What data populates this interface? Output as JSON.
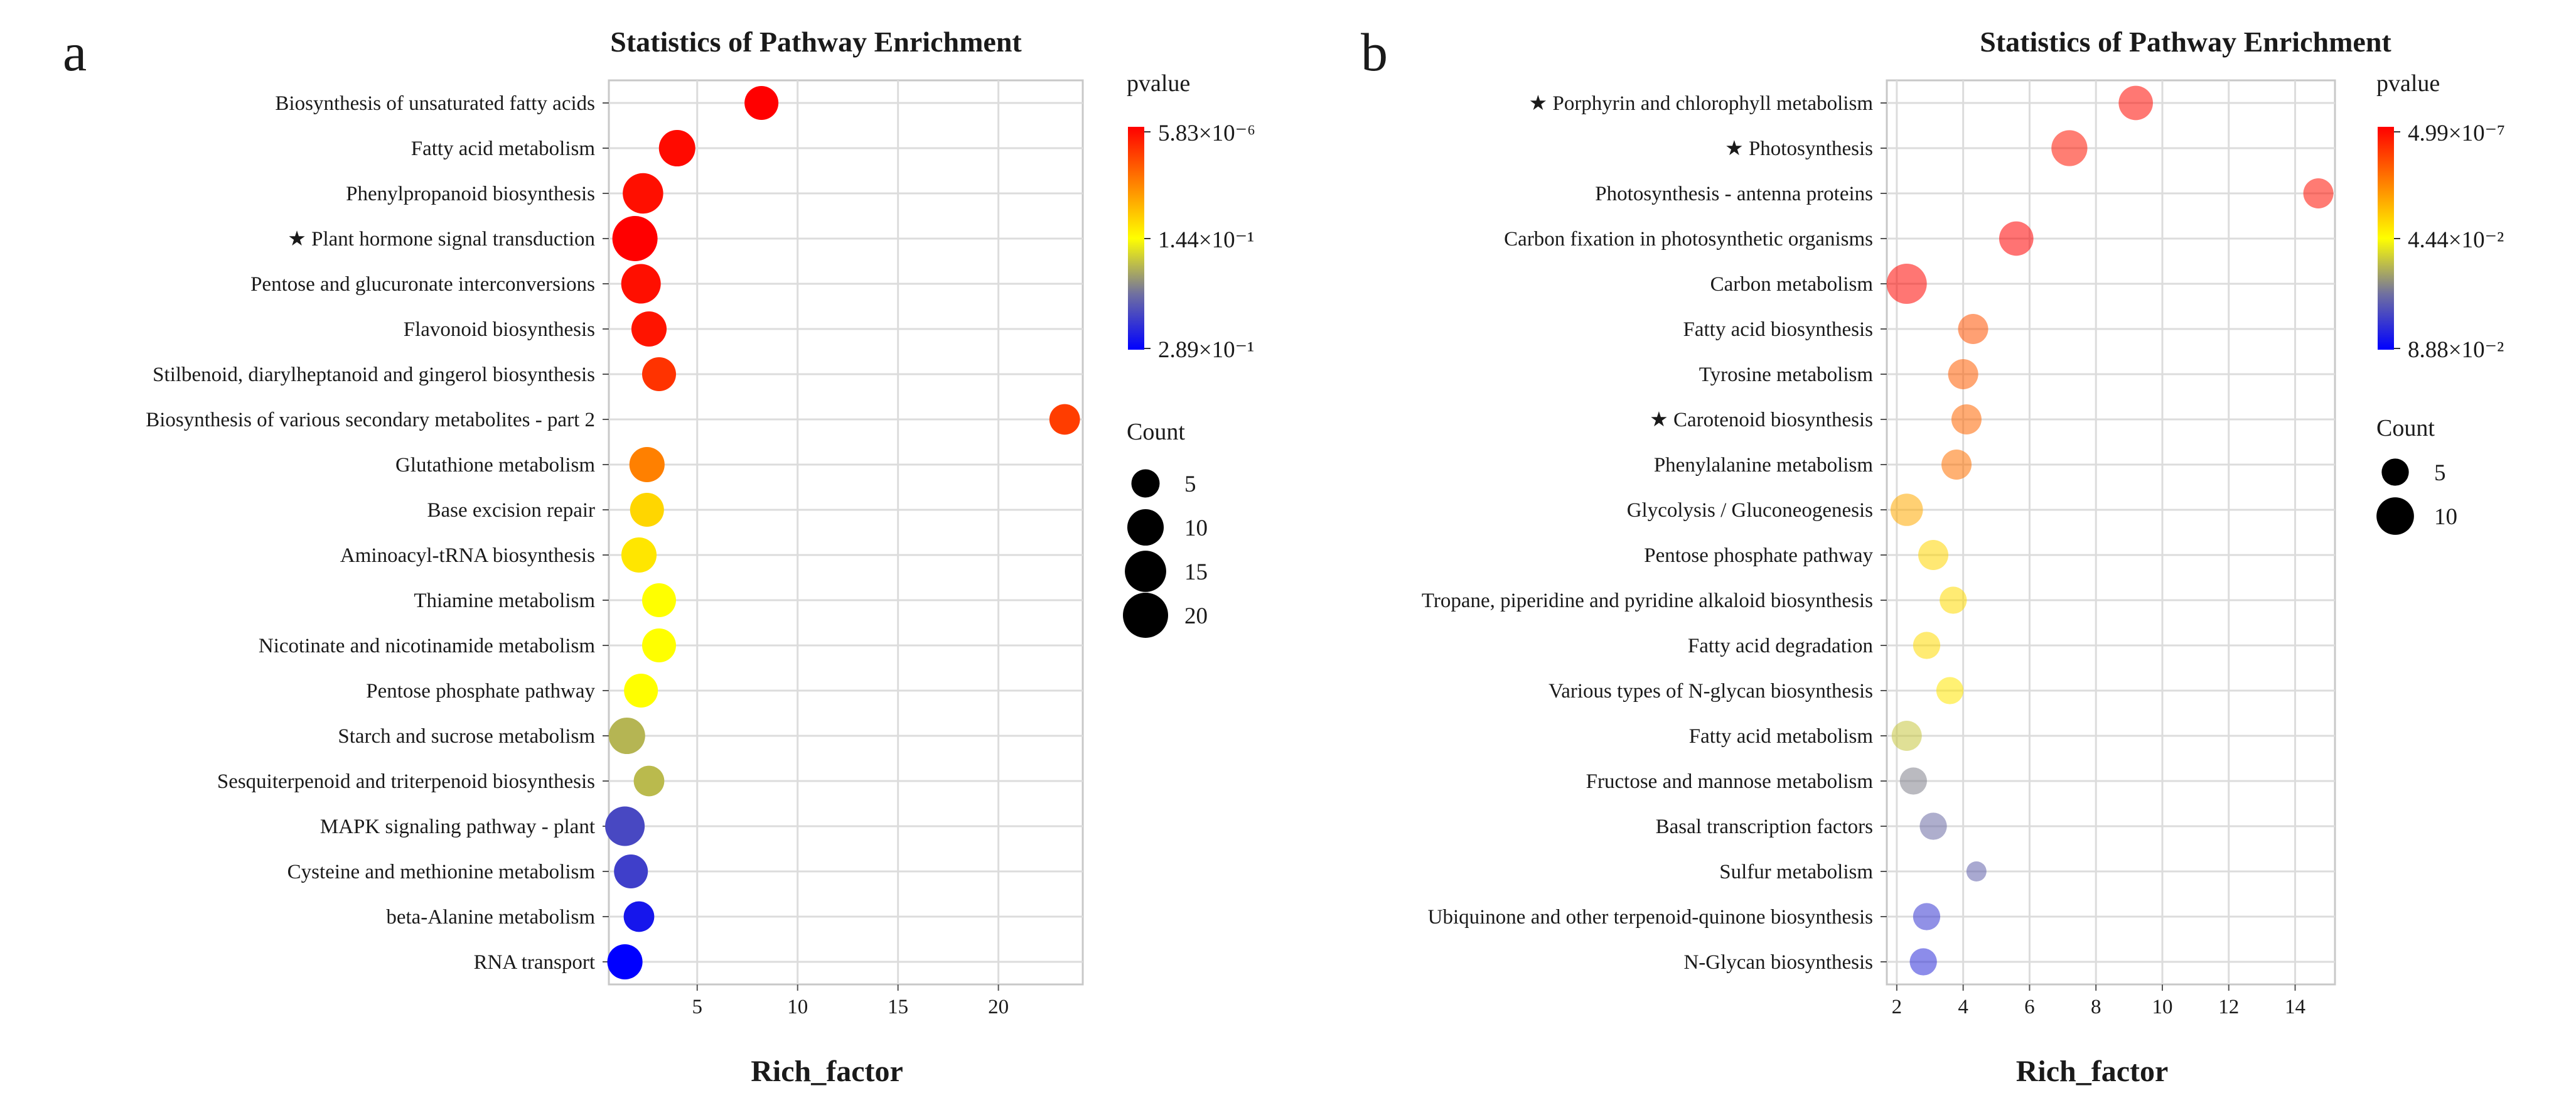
{
  "chart_data": [
    {
      "panel": "a",
      "type": "scatter",
      "title": "Statistics of Pathway Enrichment",
      "xlabel": "Rich_factor",
      "ylabel": "",
      "xlim": [
        0.6,
        24.2
      ],
      "xticks": [
        5,
        10,
        15,
        20
      ],
      "grid": true,
      "star_marker": "★",
      "categories": [
        "Biosynthesis of unsaturated fatty acids",
        "Fatty acid metabolism",
        "Phenylpropanoid biosynthesis",
        "Plant hormone signal transduction",
        "Pentose and glucuronate interconversions",
        "Flavonoid biosynthesis",
        "Stilbenoid, diarylheptanoid and gingerol biosynthesis",
        "Biosynthesis of various secondary metabolites - part 2",
        "Glutathione metabolism",
        "Base excision repair",
        "Aminoacyl-tRNA biosynthesis",
        "Thiamine metabolism",
        "Nicotinate and nicotinamide metabolism",
        "Pentose phosphate pathway",
        "Starch and sucrose metabolism",
        "Sesquiterpenoid and triterpenoid biosynthesis",
        "MAPK signaling pathway - plant",
        "Cysteine and methionine metabolism",
        "beta-Alanine metabolism",
        "RNA transport"
      ],
      "starred": [
        false,
        false,
        false,
        true,
        false,
        false,
        false,
        false,
        false,
        false,
        false,
        false,
        false,
        false,
        false,
        false,
        false,
        false,
        false,
        false
      ],
      "rich_factor": [
        8.2,
        4.0,
        2.3,
        1.9,
        2.2,
        2.6,
        3.1,
        23.3,
        2.5,
        2.5,
        2.1,
        3.1,
        3.1,
        2.2,
        1.5,
        2.6,
        1.4,
        1.7,
        2.1,
        1.4
      ],
      "count": [
        8,
        10,
        14,
        20,
        13,
        9,
        8,
        6,
        9,
        8,
        9,
        8,
        8,
        8,
        10,
        6,
        13,
        8,
        6,
        9
      ],
      "pvalue_fraction": [
        0.0,
        0.02,
        0.03,
        0.0,
        0.03,
        0.04,
        0.1,
        0.12,
        0.25,
        0.42,
        0.45,
        0.5,
        0.5,
        0.5,
        0.63,
        0.62,
        0.84,
        0.86,
        0.95,
        1.0
      ],
      "color_legend": {
        "title": "pvalue",
        "labels": [
          "5.83×10⁻⁶",
          "1.44×10⁻¹",
          "2.89×10⁻¹"
        ],
        "colors": [
          "#ff0000",
          "#ff8000",
          "#ffff00",
          "#7070a0",
          "#0000ff"
        ]
      },
      "size_legend": {
        "title": "Count",
        "values": [
          5,
          10,
          15,
          20
        ],
        "labels": [
          "5",
          "10",
          "15",
          "20"
        ]
      },
      "point_opacity": 1.0
    },
    {
      "panel": "b",
      "type": "scatter",
      "title": "Statistics of Pathway Enrichment",
      "xlabel": "Rich_factor",
      "ylabel": "",
      "xlim": [
        1.7,
        15.2
      ],
      "xticks": [
        2,
        4,
        6,
        8,
        10,
        12,
        14
      ],
      "grid": true,
      "star_marker": "★",
      "categories": [
        "Porphyrin and chlorophyll metabolism",
        "Photosynthesis",
        "Photosynthesis - antenna proteins",
        "Carbon fixation in photosynthetic organisms",
        "Carbon metabolism",
        "Fatty acid biosynthesis",
        "Tyrosine metabolism",
        "Carotenoid biosynthesis",
        "Phenylalanine metabolism",
        "Glycolysis / Gluconeogenesis",
        "Pentose phosphate pathway",
        "Tropane, piperidine and pyridine alkaloid biosynthesis",
        "Fatty acid degradation",
        "Various types of N-glycan biosynthesis",
        "Fatty acid metabolism",
        "Fructose and mannose metabolism",
        "Basal transcription factors",
        "Sulfur metabolism",
        "Ubiquinone and other terpenoid-quinone biosynthesis",
        "N-Glycan biosynthesis"
      ],
      "starred": [
        true,
        true,
        false,
        false,
        false,
        false,
        false,
        true,
        false,
        false,
        false,
        false,
        false,
        false,
        false,
        false,
        false,
        false,
        false,
        false
      ],
      "rich_factor": [
        9.2,
        7.2,
        14.7,
        5.6,
        2.3,
        4.3,
        4.0,
        4.1,
        3.8,
        2.3,
        3.1,
        3.7,
        2.9,
        3.6,
        2.3,
        2.5,
        3.1,
        4.4,
        2.9,
        2.8
      ],
      "count": [
        8,
        9,
        6,
        8,
        12,
        6,
        6,
        6,
        6,
        7,
        6,
        5,
        5,
        5,
        6,
        5,
        5,
        4,
        5,
        5
      ],
      "pvalue_fraction": [
        0.02,
        0.04,
        0.03,
        0.0,
        0.01,
        0.16,
        0.18,
        0.2,
        0.22,
        0.33,
        0.42,
        0.43,
        0.43,
        0.45,
        0.6,
        0.72,
        0.76,
        0.78,
        0.88,
        0.9
      ],
      "color_legend": {
        "title": "pvalue",
        "labels": [
          "4.99×10⁻⁷",
          "4.44×10⁻²",
          "8.88×10⁻²"
        ],
        "colors": [
          "#ff0000",
          "#ff8000",
          "#ffff00",
          "#7070a0",
          "#0000ff"
        ]
      },
      "size_legend": {
        "title": "Count",
        "values": [
          5,
          10
        ],
        "labels": [
          "5",
          "10"
        ]
      },
      "point_opacity": 0.55
    }
  ]
}
